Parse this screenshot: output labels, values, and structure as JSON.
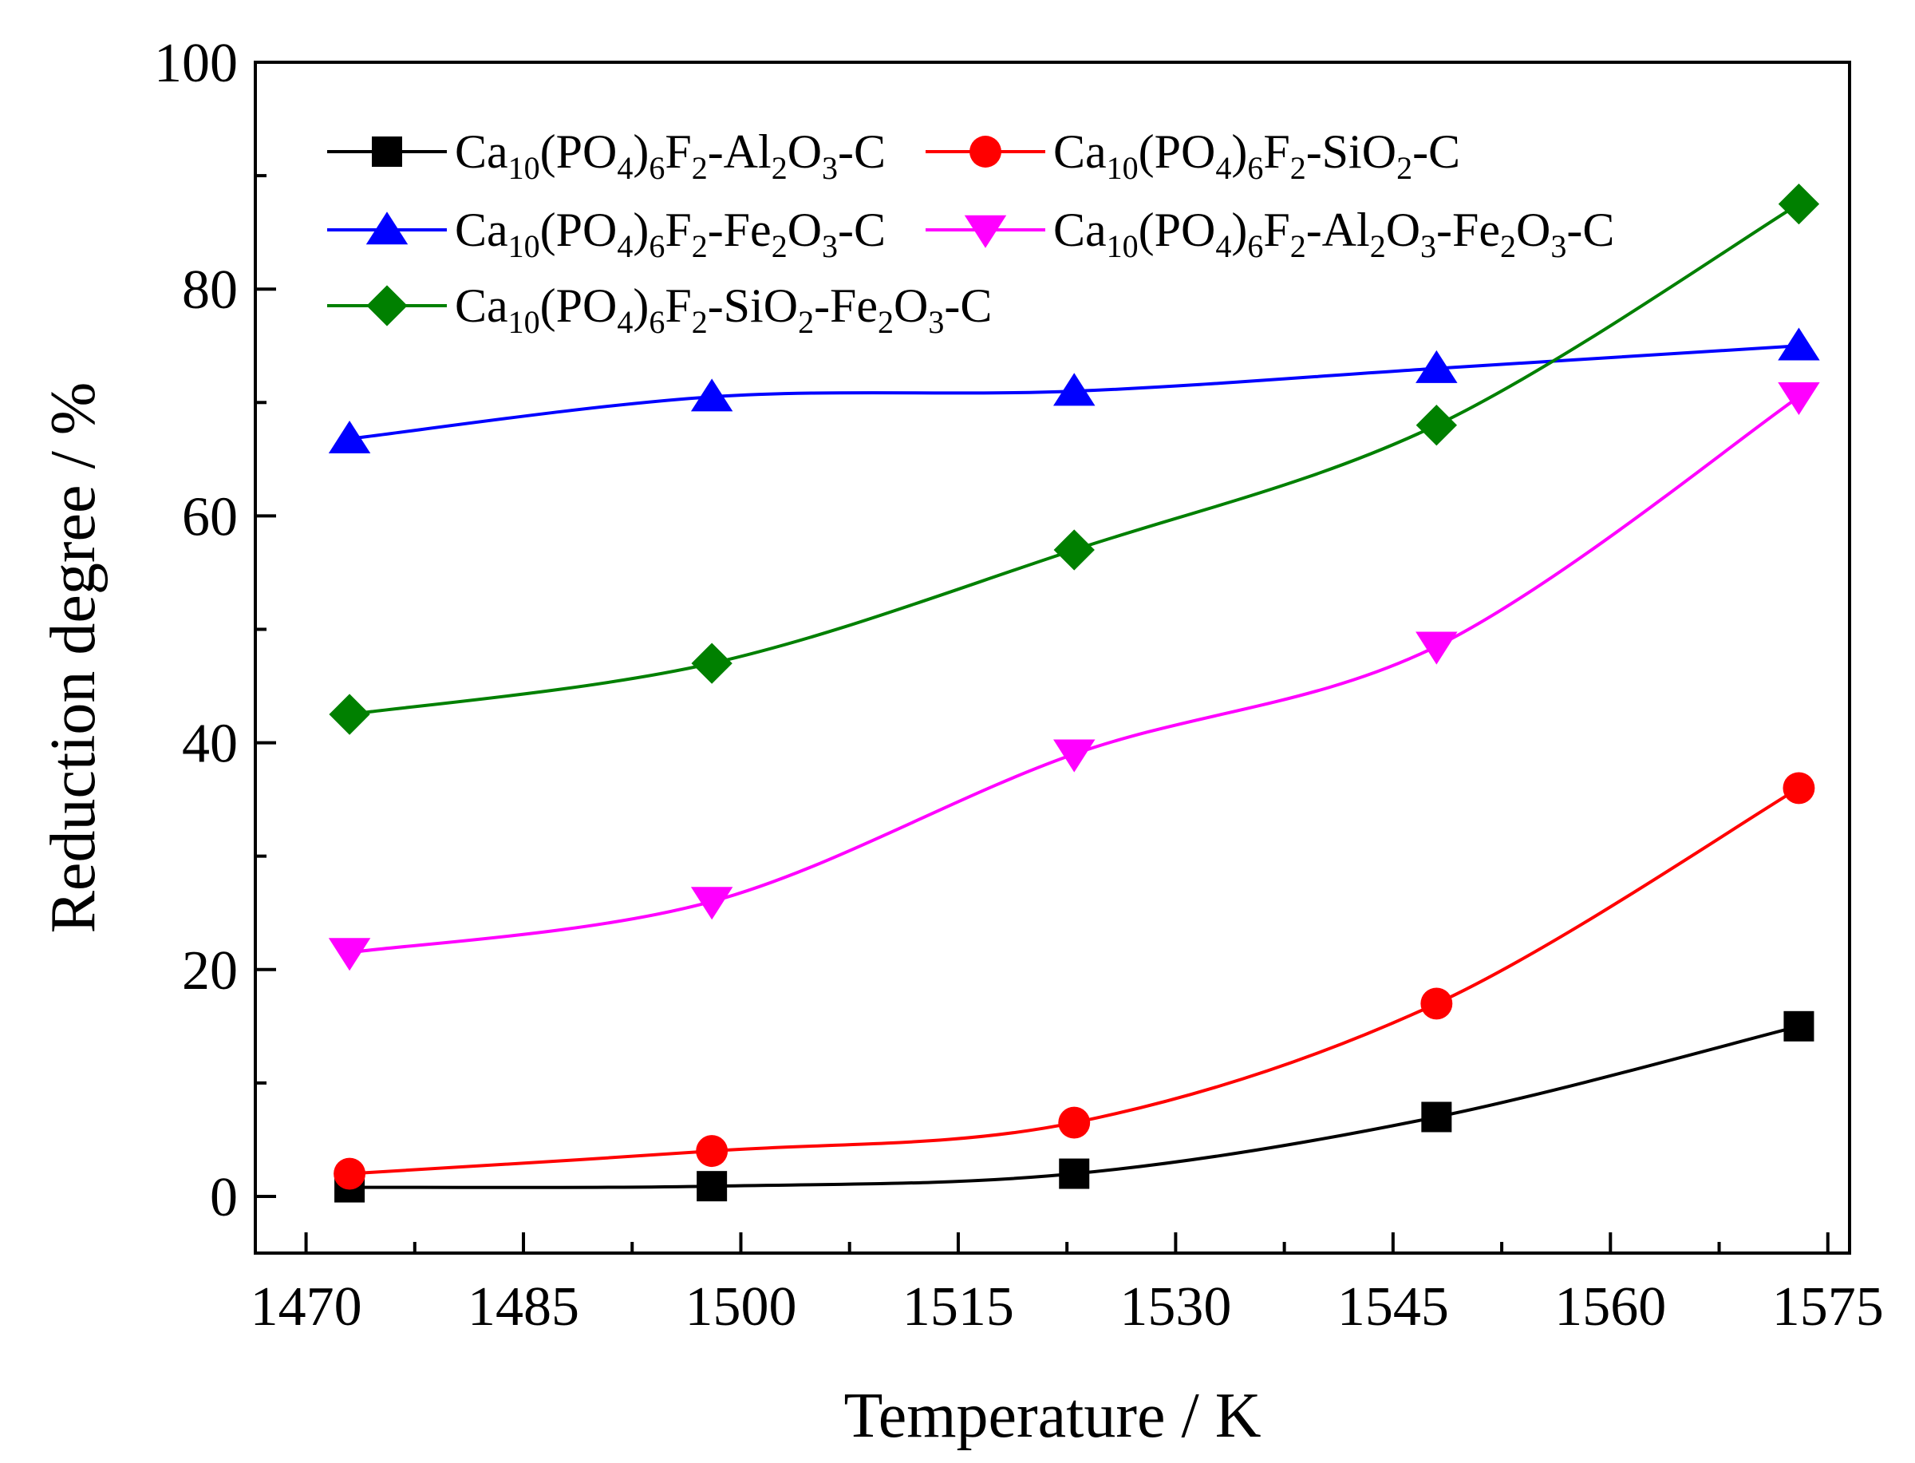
{
  "chart_data": {
    "type": "line",
    "xlabel": "Temperature / K",
    "ylabel": "Reduction degree / %",
    "xlim": [
      1466.5,
      1576.5
    ],
    "ylim": [
      -5,
      100
    ],
    "xticks": [
      1470,
      1485,
      1500,
      1515,
      1530,
      1545,
      1560,
      1575
    ],
    "xtick_labels": [
      "1470",
      "1485",
      "1500",
      "1515",
      "1530",
      "1545",
      "1560",
      "1575"
    ],
    "yticks": [
      0,
      20,
      40,
      60,
      80,
      100
    ],
    "ytick_labels": [
      "0",
      "20",
      "40",
      "60",
      "80",
      "100"
    ],
    "x": [
      1473,
      1498,
      1523,
      1548,
      1573
    ],
    "legend_position": "top-left",
    "series": [
      {
        "name": "Ca10(PO4)6F2-Al2O3-C",
        "label_parts": [
          [
            "Ca",
            ""
          ],
          [
            "10",
            "sub"
          ],
          [
            "(PO",
            ""
          ],
          [
            "4",
            "sub"
          ],
          [
            ")",
            ""
          ],
          [
            "6",
            "sub"
          ],
          [
            "F",
            ""
          ],
          [
            "2",
            "sub"
          ],
          [
            "-Al",
            ""
          ],
          [
            "2",
            "sub"
          ],
          [
            "O",
            ""
          ],
          [
            "3",
            "sub"
          ],
          [
            "-C",
            ""
          ]
        ],
        "color": "#000000",
        "marker": "square",
        "values": [
          0.8,
          0.9,
          2.0,
          7.0,
          15.0
        ]
      },
      {
        "name": "Ca10(PO4)6F2-SiO2-C",
        "label_parts": [
          [
            "Ca",
            ""
          ],
          [
            "10",
            "sub"
          ],
          [
            "(PO",
            ""
          ],
          [
            "4",
            "sub"
          ],
          [
            ")",
            ""
          ],
          [
            "6",
            "sub"
          ],
          [
            "F",
            ""
          ],
          [
            "2",
            "sub"
          ],
          [
            "-SiO",
            ""
          ],
          [
            "2",
            "sub"
          ],
          [
            "-C",
            ""
          ]
        ],
        "color": "#ff0000",
        "marker": "circle",
        "values": [
          2.0,
          4.0,
          6.5,
          17.0,
          36.0
        ]
      },
      {
        "name": "Ca10(PO4)6F2-Fe2O3-C",
        "label_parts": [
          [
            "Ca",
            ""
          ],
          [
            "10",
            "sub"
          ],
          [
            "(PO",
            ""
          ],
          [
            "4",
            "sub"
          ],
          [
            ")",
            ""
          ],
          [
            "6",
            "sub"
          ],
          [
            "F",
            ""
          ],
          [
            "2",
            "sub"
          ],
          [
            "-Fe",
            ""
          ],
          [
            "2",
            "sub"
          ],
          [
            "O",
            ""
          ],
          [
            "3",
            "sub"
          ],
          [
            "-C",
            ""
          ]
        ],
        "color": "#0000ff",
        "marker": "triangle-up",
        "values": [
          66.8,
          70.5,
          71.0,
          73.0,
          75.0
        ]
      },
      {
        "name": "Ca10(PO4)6F2-Al2O3-Fe2O3-C",
        "label_parts": [
          [
            "Ca",
            ""
          ],
          [
            "10",
            "sub"
          ],
          [
            "(PO",
            ""
          ],
          [
            "4",
            "sub"
          ],
          [
            ")",
            ""
          ],
          [
            "6",
            "sub"
          ],
          [
            "F",
            ""
          ],
          [
            "2",
            "sub"
          ],
          [
            "-Al",
            ""
          ],
          [
            "2",
            "sub"
          ],
          [
            "O",
            ""
          ],
          [
            "3",
            "sub"
          ],
          [
            "-Fe",
            ""
          ],
          [
            "2",
            "sub"
          ],
          [
            "O",
            ""
          ],
          [
            "3",
            "sub"
          ],
          [
            "-C",
            ""
          ]
        ],
        "color": "#ff00ff",
        "marker": "triangle-down",
        "values": [
          21.5,
          26.0,
          39.0,
          48.5,
          70.5
        ]
      },
      {
        "name": "Ca10(PO4)6F2-SiO2-Fe2O3-C",
        "label_parts": [
          [
            "Ca",
            ""
          ],
          [
            "10",
            "sub"
          ],
          [
            "(PO",
            ""
          ],
          [
            "4",
            "sub"
          ],
          [
            ")",
            ""
          ],
          [
            "6",
            "sub"
          ],
          [
            "F",
            ""
          ],
          [
            "2",
            "sub"
          ],
          [
            "-SiO",
            ""
          ],
          [
            "2",
            "sub"
          ],
          [
            "-Fe",
            ""
          ],
          [
            "2",
            "sub"
          ],
          [
            "O",
            ""
          ],
          [
            "3",
            "sub"
          ],
          [
            "-C",
            ""
          ]
        ],
        "color": "#008000",
        "marker": "diamond",
        "values": [
          42.5,
          47.0,
          57.0,
          68.0,
          87.5
        ]
      }
    ]
  }
}
